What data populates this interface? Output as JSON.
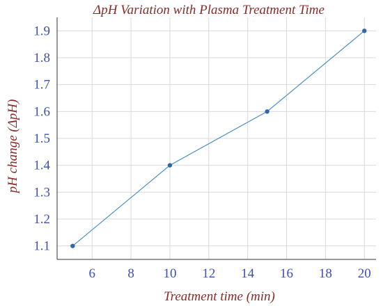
{
  "chart_data": {
    "type": "line",
    "title": "ΔpH Variation with Plasma Treatment Time",
    "xlabel": "Treatment time (min)",
    "ylabel": "pH change (ΔpH)",
    "x": [
      5,
      10,
      15,
      20
    ],
    "series": [
      {
        "values": [
          1.1,
          1.4,
          1.6,
          1.9
        ]
      }
    ],
    "xlim": [
      4.2,
      20.6
    ],
    "ylim": [
      1.05,
      1.95
    ],
    "xticks": [
      6,
      8,
      10,
      12,
      14,
      16,
      18,
      20
    ],
    "yticks": [
      1.1,
      1.2,
      1.3,
      1.4,
      1.5,
      1.6,
      1.7,
      1.8,
      1.9
    ],
    "xtick_labels": [
      "6",
      "8",
      "10",
      "12",
      "14",
      "16",
      "18",
      "20"
    ],
    "ytick_labels": [
      "1.1",
      "1.2",
      "1.3",
      "1.4",
      "1.5",
      "1.6",
      "1.7",
      "1.8",
      "1.9"
    ],
    "grid": true,
    "colors": {
      "line": "#4a90c8",
      "marker": "#2f67a8",
      "title": "#8b2a2a",
      "axis_label": "#8b2a2a",
      "tick_label": "#3f4fb0",
      "grid": "#d9d9d9",
      "axis": "#333333"
    }
  }
}
